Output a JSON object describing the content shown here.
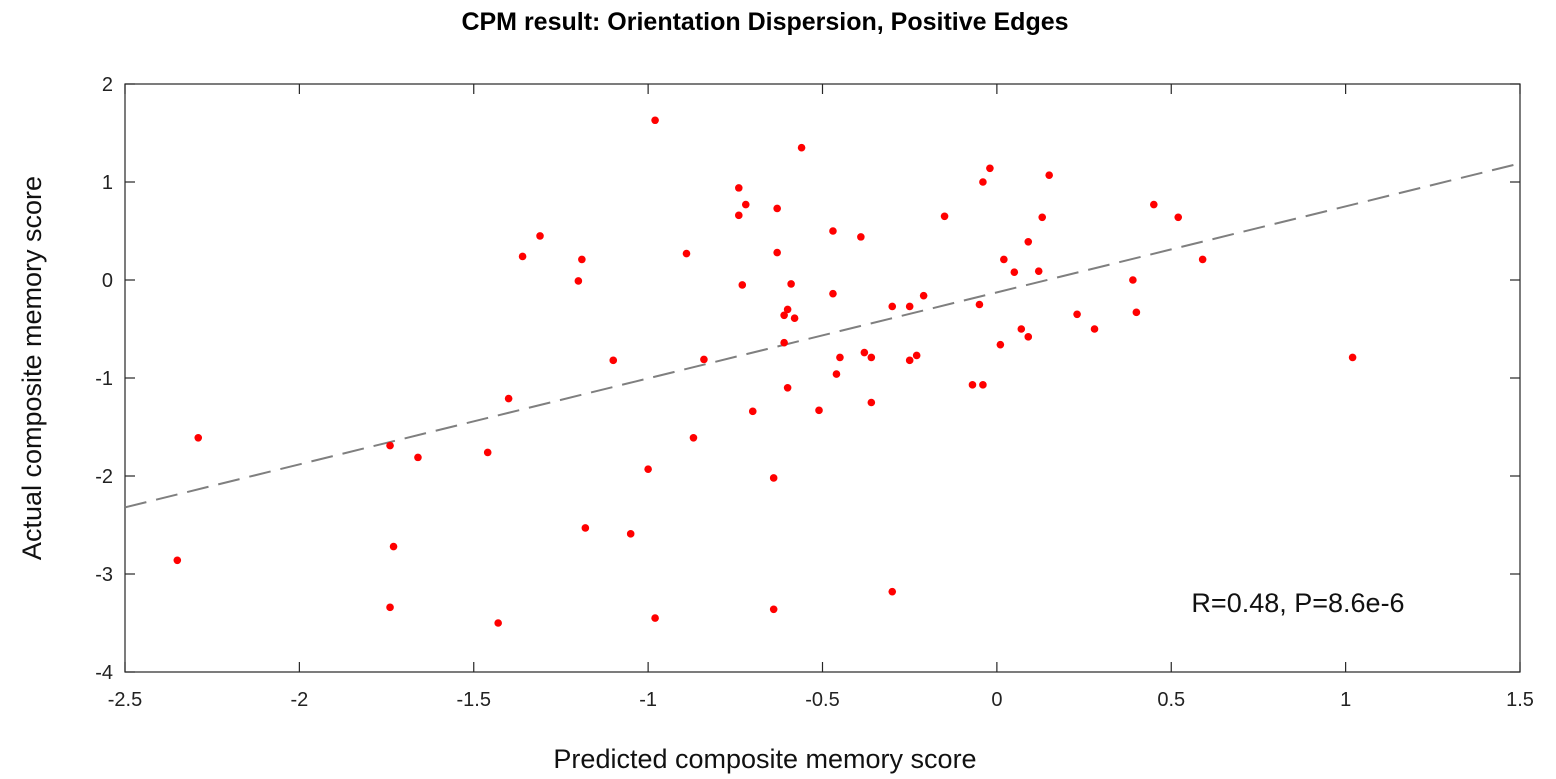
{
  "chart_data": {
    "type": "scatter",
    "title": "CPM result: Orientation Dispersion, Positive Edges",
    "xlabel": "Predicted composite memory score",
    "ylabel": "Actual composite memory score",
    "xlim": [
      -2.5,
      1.5
    ],
    "ylim": [
      -4,
      2
    ],
    "xticks": [
      -2.5,
      -2,
      -1.5,
      -1,
      -0.5,
      0,
      0.5,
      1,
      1.5
    ],
    "xtick_labels": [
      "-2.5",
      "-2",
      "-1.5",
      "-1",
      "-0.5",
      "0",
      "0.5",
      "1",
      "1.5"
    ],
    "yticks": [
      -4,
      -3,
      -2,
      -1,
      0,
      1,
      2
    ],
    "ytick_labels": [
      "-4",
      "-3",
      "-2",
      "-1",
      "0",
      "1",
      "2"
    ],
    "grid": false,
    "annotation": "R=0.48, P=8.6e-6",
    "point_color": "#ff0000",
    "fit_line_color": "#7f7f7f",
    "fit_line": {
      "x": [
        -2.5,
        1.5
      ],
      "y": [
        -2.32,
        1.19
      ],
      "style": "dashed"
    },
    "points": [
      [
        -2.35,
        -2.86
      ],
      [
        -2.29,
        -1.61
      ],
      [
        -1.74,
        -3.34
      ],
      [
        -1.74,
        -1.69
      ],
      [
        -1.73,
        -2.72
      ],
      [
        -1.66,
        -1.81
      ],
      [
        -1.46,
        -1.76
      ],
      [
        -1.43,
        -3.5
      ],
      [
        -1.4,
        -1.21
      ],
      [
        -1.36,
        0.24
      ],
      [
        -1.31,
        0.45
      ],
      [
        -1.2,
        -0.01
      ],
      [
        -1.19,
        0.21
      ],
      [
        -1.18,
        -2.53
      ],
      [
        -1.1,
        -0.82
      ],
      [
        -1.05,
        -2.59
      ],
      [
        -1.0,
        -1.93
      ],
      [
        -0.98,
        1.63
      ],
      [
        -0.98,
        -3.45
      ],
      [
        -0.89,
        0.27
      ],
      [
        -0.87,
        -1.61
      ],
      [
        -0.84,
        -0.81
      ],
      [
        -0.74,
        0.94
      ],
      [
        -0.74,
        0.66
      ],
      [
        -0.73,
        -0.05
      ],
      [
        -0.72,
        0.77
      ],
      [
        -0.7,
        -1.34
      ],
      [
        -0.64,
        -2.02
      ],
      [
        -0.64,
        -3.36
      ],
      [
        -0.63,
        0.28
      ],
      [
        -0.63,
        0.73
      ],
      [
        -0.61,
        -0.64
      ],
      [
        -0.61,
        -0.36
      ],
      [
        -0.6,
        -1.1
      ],
      [
        -0.6,
        -0.3
      ],
      [
        -0.59,
        -0.04
      ],
      [
        -0.58,
        -0.39
      ],
      [
        -0.56,
        1.35
      ],
      [
        -0.51,
        -1.33
      ],
      [
        -0.47,
        -0.14
      ],
      [
        -0.47,
        0.5
      ],
      [
        -0.46,
        -0.96
      ],
      [
        -0.45,
        -0.79
      ],
      [
        -0.39,
        0.44
      ],
      [
        -0.38,
        -0.74
      ],
      [
        -0.36,
        -0.79
      ],
      [
        -0.36,
        -1.25
      ],
      [
        -0.3,
        -0.27
      ],
      [
        -0.3,
        -3.18
      ],
      [
        -0.25,
        -0.82
      ],
      [
        -0.25,
        -0.27
      ],
      [
        -0.23,
        -0.77
      ],
      [
        -0.21,
        -0.16
      ],
      [
        -0.15,
        0.65
      ],
      [
        -0.07,
        -1.07
      ],
      [
        -0.05,
        -0.25
      ],
      [
        -0.04,
        1.0
      ],
      [
        -0.04,
        -1.07
      ],
      [
        -0.02,
        1.14
      ],
      [
        0.01,
        -0.66
      ],
      [
        0.02,
        0.21
      ],
      [
        0.05,
        0.08
      ],
      [
        0.07,
        -0.5
      ],
      [
        0.09,
        0.39
      ],
      [
        0.09,
        -0.58
      ],
      [
        0.12,
        0.09
      ],
      [
        0.13,
        0.64
      ],
      [
        0.15,
        1.07
      ],
      [
        0.23,
        -0.35
      ],
      [
        0.28,
        -0.5
      ],
      [
        0.39,
        0.0
      ],
      [
        0.4,
        -0.33
      ],
      [
        0.45,
        0.77
      ],
      [
        0.52,
        0.64
      ],
      [
        0.59,
        0.21
      ],
      [
        1.02,
        -0.79
      ]
    ]
  }
}
